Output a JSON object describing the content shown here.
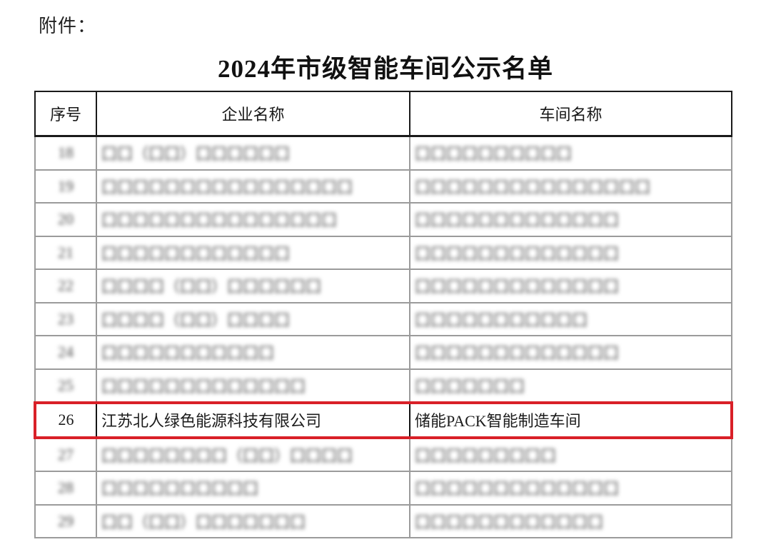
{
  "page": {
    "attachment_label": "附件：",
    "title": "2024年市级智能车间公示名单"
  },
  "colors": {
    "highlight_border": "#d92028",
    "text": "#1c1c1c",
    "blurred_grid": "#9b9b9b"
  },
  "table": {
    "headers": {
      "no": "序号",
      "company": "企业名称",
      "workshop": "车间名称"
    },
    "rows": [
      {
        "no": "18",
        "company": "囗囗（囗囗）囗囗囗囗囗囗",
        "workshop": "囗囗囗囗囗囗囗囗囗囗",
        "legible": false
      },
      {
        "no": "19",
        "company": "囗囗囗囗囗囗囗囗囗囗囗囗囗囗囗囗",
        "workshop": "囗囗囗囗囗囗囗囗囗囗囗囗囗囗囗",
        "legible": false
      },
      {
        "no": "20",
        "company": "囗囗囗囗囗囗囗囗囗囗囗囗囗囗囗",
        "workshop": "囗囗囗囗囗囗囗囗囗囗囗囗囗",
        "legible": false
      },
      {
        "no": "21",
        "company": "囗囗囗囗囗囗囗囗囗囗囗囗",
        "workshop": "囗囗囗囗囗囗囗囗囗囗囗囗囗",
        "legible": false
      },
      {
        "no": "22",
        "company": "囗囗囗囗（囗囗）囗囗囗囗囗囗",
        "workshop": "囗囗囗囗囗囗囗囗囗囗囗囗囗",
        "legible": false
      },
      {
        "no": "23",
        "company": "囗囗囗囗（囗囗）囗囗囗囗",
        "workshop": "囗囗囗囗囗囗囗囗囗囗囗",
        "legible": false
      },
      {
        "no": "24",
        "company": "囗囗囗囗囗囗囗囗囗囗囗",
        "workshop": "囗囗囗囗囗囗囗囗囗囗囗囗囗",
        "legible": false
      },
      {
        "no": "25",
        "company": "囗囗囗囗囗囗囗囗囗囗囗囗囗",
        "workshop": "囗囗囗囗囗囗囗",
        "legible": false
      },
      {
        "no": "26",
        "company": "江苏北人绿色能源科技有限公司",
        "workshop": "储能PACK智能制造车间",
        "legible": true,
        "highlighted": true
      },
      {
        "no": "27",
        "company": "囗囗囗囗囗囗囗囗（囗囗）囗囗囗囗",
        "workshop": "囗囗囗囗囗囗囗囗囗",
        "legible": false
      },
      {
        "no": "28",
        "company": "囗囗囗囗囗囗囗囗囗囗",
        "workshop": "囗囗囗囗囗囗囗囗囗囗囗囗囗",
        "legible": false
      },
      {
        "no": "29",
        "company": "囗囗（囗囗）囗囗囗囗囗囗囗",
        "workshop": "囗囗囗囗囗囗囗囗囗囗囗囗",
        "legible": false
      }
    ]
  }
}
